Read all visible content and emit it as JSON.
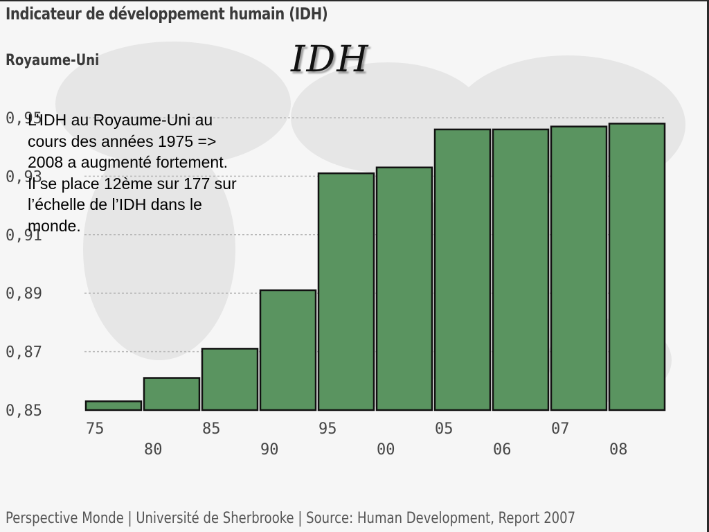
{
  "source_title": "Indicateur de développement humain (IDH)",
  "source_subtitle": "Royaume-Uni",
  "slide_title": "IDH",
  "caption_lines": [
    "L’IDH au Royaume-Uni au",
    "cours des années 1975 =>",
    "2008 a augmenté fortement.",
    "Il se place 12ème  sur 177 sur",
    "l’échelle de l’IDH dans le",
    "monde."
  ],
  "footer": "Perspective Monde | Université de Sherbrooke | Source: Human Development,  Report 2007",
  "colors": {
    "bar": "#5a9460",
    "bar_edge": "#111111",
    "grid": "#b8b8b8",
    "axis": "#222222"
  },
  "chart_data": {
    "type": "bar",
    "title": "Indicateur de développement humain (IDH)",
    "subtitle": "Royaume-Uni",
    "categories": [
      "75",
      "80",
      "85",
      "90",
      "95",
      "00",
      "05",
      "06",
      "07",
      "08"
    ],
    "values": [
      0.853,
      0.861,
      0.871,
      0.891,
      0.931,
      0.933,
      0.946,
      0.946,
      0.947,
      0.948
    ],
    "ylim": [
      0.85,
      0.95
    ],
    "y_ticks": [
      "0,85",
      "0,87",
      "0,89",
      "0,91",
      "0,93",
      "0,95"
    ],
    "xlabel": "",
    "ylabel": "",
    "grid": true,
    "legend": "none"
  }
}
